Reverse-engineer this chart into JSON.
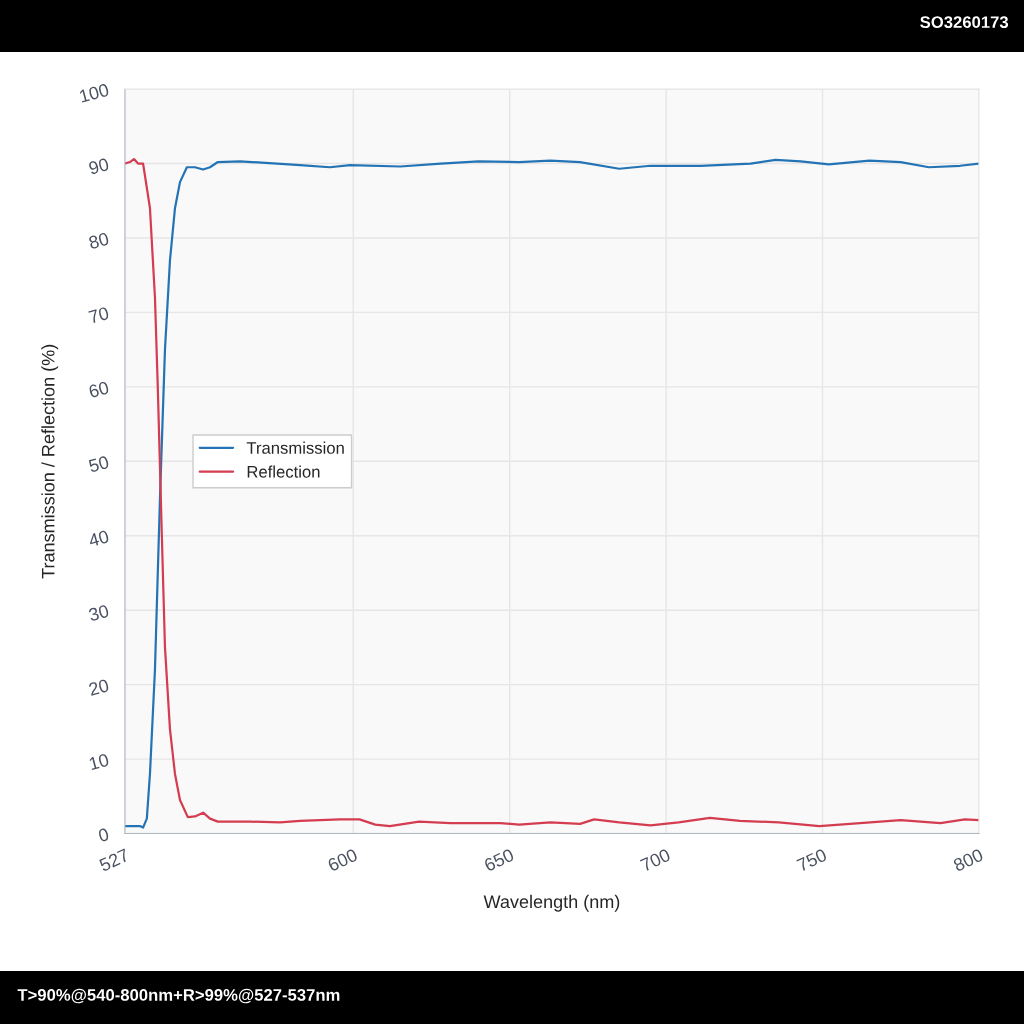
{
  "chart_data": {
    "type": "line",
    "title": "SO3260173",
    "xlabel": "Wavelength (nm)",
    "ylabel": "Transmission / Reflection (%)",
    "annotations": [
      "T>90%@540-800nm+R>99%@527-537nm"
    ],
    "xlim": [
      527,
      800
    ],
    "xticks": [
      527,
      600,
      650,
      700,
      750,
      800
    ],
    "ylim": [
      0,
      100
    ],
    "yticks": [
      0,
      10,
      20,
      30,
      40,
      50,
      60,
      70,
      80,
      90,
      100
    ],
    "grid": true,
    "legend": "center left",
    "series": [
      {
        "name": "Transmission",
        "color": "#2474b5",
        "x": [
          527,
          531.8,
          532.8,
          534,
          535,
          536.6,
          538.2,
          539.8,
          541.4,
          543,
          544.6,
          546.8,
          549.4,
          552,
          554.2,
          556.7,
          563.8,
          583,
          592.5,
          599,
          615,
          628,
          640,
          653,
          663,
          672.5,
          685,
          695,
          711,
          727,
          735,
          743,
          752,
          765,
          775,
          784,
          794,
          800
        ],
        "values": [
          1,
          1,
          0.8,
          2,
          8,
          22,
          45,
          65,
          77,
          84,
          87.5,
          89.5,
          89.5,
          89.2,
          89.5,
          90.2,
          90.3,
          89.8,
          89.5,
          89.8,
          89.6,
          90.0,
          90.3,
          90.2,
          90.4,
          90.2,
          89.3,
          89.7,
          89.7,
          90.0,
          90.5,
          90.3,
          89.9,
          90.4,
          90.2,
          89.5,
          89.7,
          90.0
        ]
      },
      {
        "name": "Reflection",
        "color": "#d43c50",
        "x": [
          527,
          528.6,
          529.9,
          531.2,
          532.8,
          535,
          536.6,
          537.5,
          538.8,
          539.8,
          541.4,
          543,
          544.6,
          547.1,
          549.4,
          552,
          554.2,
          556.7,
          567,
          576.6,
          583,
          595.7,
          602,
          607,
          611.7,
          621,
          631,
          647,
          653,
          663,
          672.5,
          677,
          685,
          695,
          704,
          714,
          723.6,
          736,
          749,
          762,
          775,
          787.7,
          795.5,
          800
        ],
        "values": [
          90,
          90.2,
          90.6,
          90,
          90,
          84,
          72,
          60,
          40,
          25,
          14,
          8,
          4.5,
          2.2,
          2.3,
          2.8,
          2,
          1.6,
          1.6,
          1.5,
          1.7,
          1.9,
          1.9,
          1.2,
          1.0,
          1.6,
          1.4,
          1.4,
          1.2,
          1.5,
          1.3,
          1.9,
          1.5,
          1.1,
          1.5,
          2.1,
          1.7,
          1.5,
          1.0,
          1.4,
          1.8,
          1.4,
          1.9,
          1.8
        ]
      }
    ]
  }
}
